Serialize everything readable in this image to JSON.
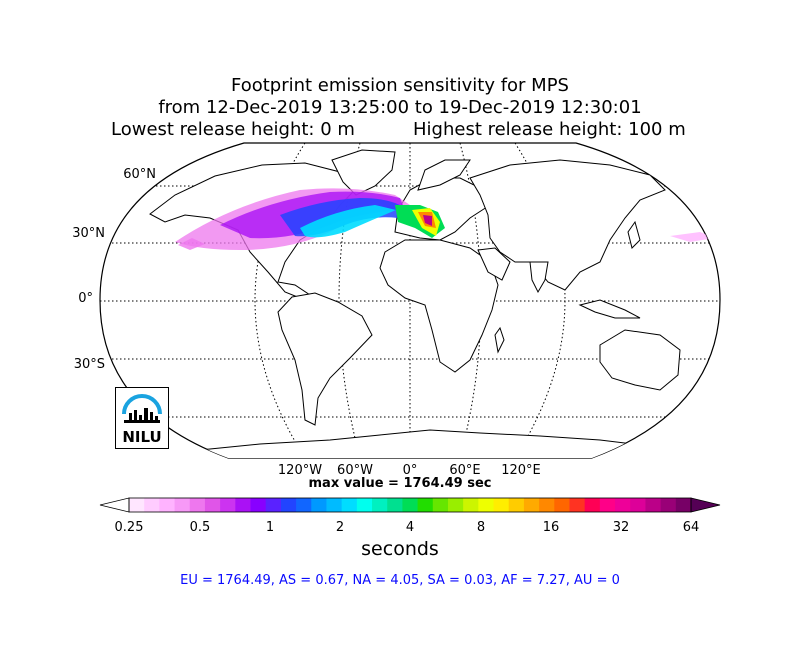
{
  "title": {
    "line1": "Footprint emission sensitivity for MPS",
    "line2": "from 12-Dec-2019 13:25:00 to 19-Dec-2019 12:30:01",
    "line3_left": "Lowest release height: 0 m",
    "line3_right": "Highest release height: 100 m"
  },
  "map": {
    "projection": "Robinson",
    "graticule": "dotted",
    "lat_labels": [
      "60°N",
      "30°N",
      "0°",
      "30°S"
    ],
    "lon_labels": [
      "120°W",
      "60°W",
      "0°",
      "60°E",
      "120°E"
    ],
    "max_value_text": "max value = 1764.49 sec"
  },
  "colorbar": {
    "ticks": [
      "0.25",
      "0.5",
      "1",
      "2",
      "4",
      "8",
      "16",
      "32",
      "64"
    ],
    "label": "seconds",
    "colors": [
      "#ffe6ff",
      "#ffccff",
      "#ffb3ff",
      "#f799f7",
      "#ee77ee",
      "#e055e8",
      "#cc33f0",
      "#aa11f5",
      "#8800ff",
      "#5a22ff",
      "#2244ff",
      "#1166ff",
      "#0099ff",
      "#00bbff",
      "#00ddff",
      "#00ffee",
      "#00f0c0",
      "#00e090",
      "#00dd55",
      "#22dd00",
      "#66e600",
      "#99ee00",
      "#ccf500",
      "#eeff00",
      "#ffee00",
      "#ffcc00",
      "#ffaa00",
      "#ff8800",
      "#ff6600",
      "#ff3322",
      "#ff0055",
      "#ff0088",
      "#ee0099",
      "#dd0099",
      "#bb0088",
      "#990077",
      "#770066"
    ]
  },
  "stats": {
    "text": "EU = 1764.49,  AS = 0.67,  NA = 4.05,  SA = 0.03,  AF = 7.27,  AU = 0"
  },
  "logo": {
    "text": "NILU"
  }
}
